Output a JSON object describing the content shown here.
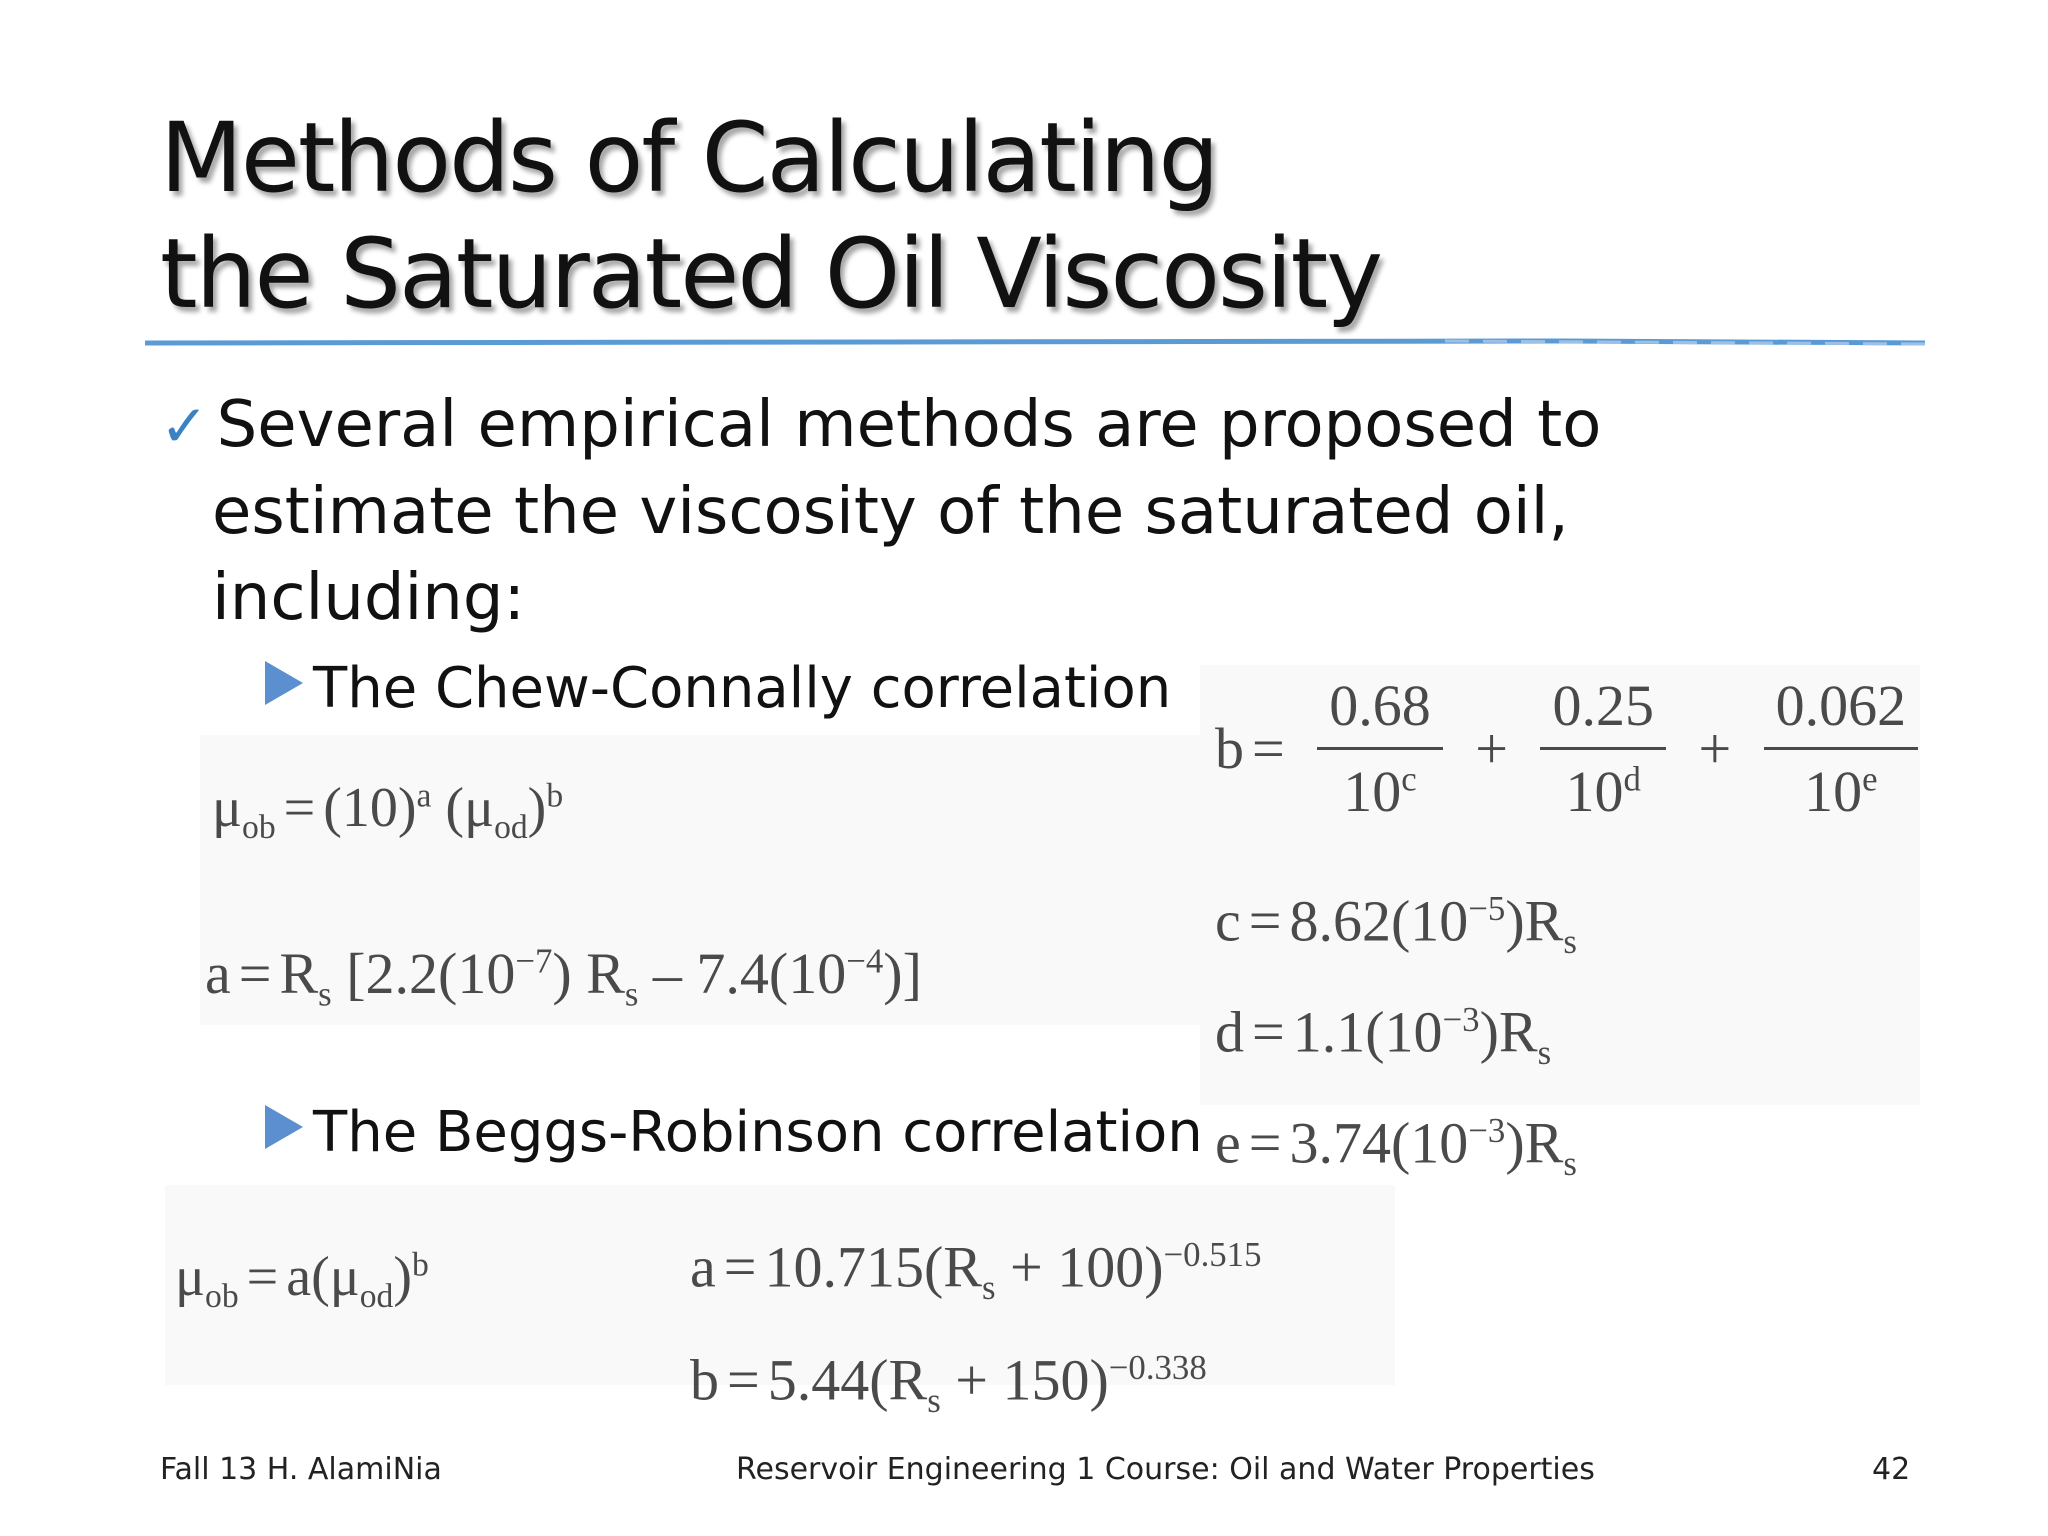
{
  "slide": {
    "title_line1": "Methods of Calculating",
    "title_line2": "the Saturated Oil Viscosity",
    "bullet_line1": "Several empirical methods are proposed to",
    "bullet_line2": "estimate the viscosity of the saturated oil,",
    "bullet_line3": "including:",
    "sub1": "The Chew-Connally correlation",
    "sub2": "The Beggs-Robinson correlation"
  },
  "eq": {
    "mu": "μ",
    "ob": "ob",
    "od": "od",
    "eq_sign": "=",
    "plus": "+",
    "minus": "–",
    "ten": "10",
    "paren10": "(10)",
    "R": "R",
    "s": "s",
    "a": "a",
    "b": "b",
    "c": "c",
    "d": "d",
    "e": "e",
    "n068": "0.68",
    "n025": "0.25",
    "n0062": "0.062",
    "a_bracket_open": "[2.2(10",
    "a_exp1": "−7",
    "a_mid": ") R",
    "a_sub": "s",
    "a_minus": " – 7.4(10",
    "a_exp2": "−4",
    "a_close": ")]",
    "c_coef": "8.62(10",
    "c_exp": "−5",
    "d_coef": "1.1(10",
    "d_exp": "−3",
    "e_coef": "3.74(10",
    "e_exp": "−3",
    "close_R": ")R",
    "br_a_coef": "10.715(R",
    "br_a_add": " + 100)",
    "br_a_exp": "−0.515",
    "br_b_coef": "5.44(R",
    "br_b_add": " + 150)",
    "br_b_exp": "−0.338"
  },
  "footer": {
    "left": "Fall 13 H. AlamiNia",
    "center": "Reservoir Engineering 1 Course: Oil and Water Properties",
    "page": "42"
  },
  "colors": {
    "accent": "#3b82c4",
    "rule": "#5b9bd5",
    "arrow": "#5b8fd0"
  }
}
